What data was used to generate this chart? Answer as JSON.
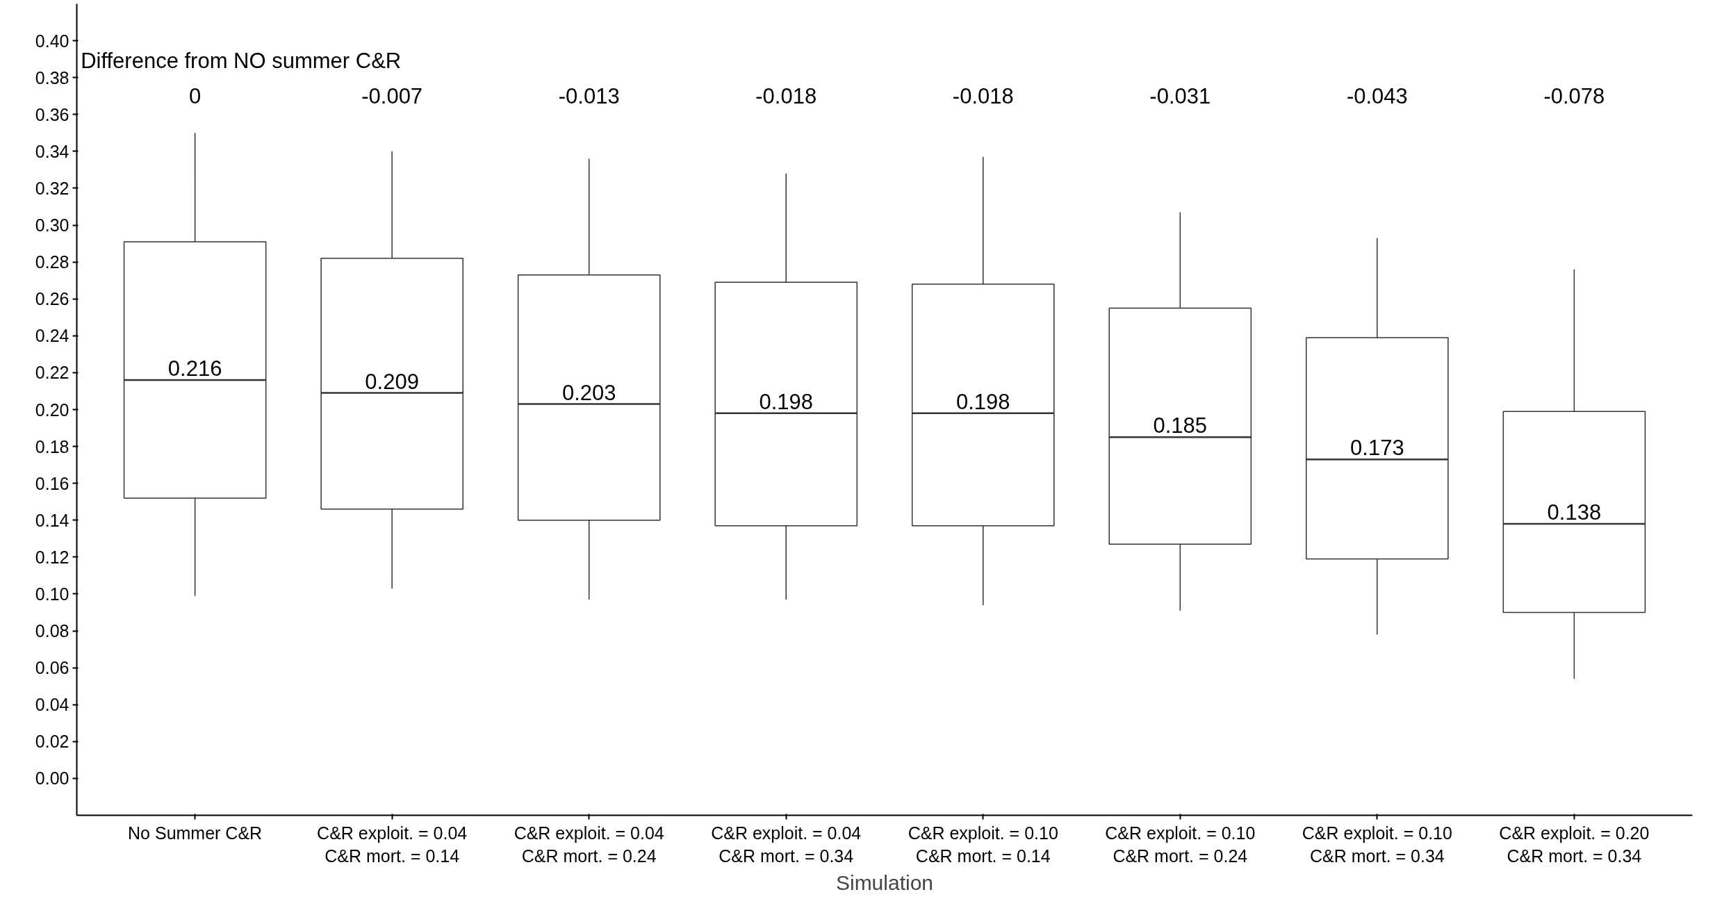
{
  "chart_data": {
    "type": "box",
    "xlabel": "Simulation",
    "categories": [
      "No Summer C&R",
      "C&R exploit. = 0.04\nC&R mort. = 0.14",
      "C&R exploit. = 0.04\nC&R mort. = 0.24",
      "C&R exploit. = 0.04\nC&R mort. = 0.34",
      "C&R exploit. = 0.10\nC&R mort. = 0.14",
      "C&R exploit. = 0.10\nC&R mort. = 0.24",
      "C&R exploit. = 0.10\nC&R mort. = 0.34",
      "C&R exploit. = 0.20\nC&R mort. = 0.34"
    ],
    "boxes": [
      {
        "low": 0.099,
        "q1": 0.152,
        "median": 0.216,
        "q3": 0.291,
        "high": 0.35
      },
      {
        "low": 0.103,
        "q1": 0.146,
        "median": 0.209,
        "q3": 0.282,
        "high": 0.34
      },
      {
        "low": 0.097,
        "q1": 0.14,
        "median": 0.203,
        "q3": 0.273,
        "high": 0.336
      },
      {
        "low": 0.097,
        "q1": 0.137,
        "median": 0.198,
        "q3": 0.269,
        "high": 0.328
      },
      {
        "low": 0.094,
        "q1": 0.137,
        "median": 0.198,
        "q3": 0.268,
        "high": 0.337
      },
      {
        "low": 0.091,
        "q1": 0.127,
        "median": 0.185,
        "q3": 0.255,
        "high": 0.307
      },
      {
        "low": 0.078,
        "q1": 0.119,
        "median": 0.173,
        "q3": 0.239,
        "high": 0.293
      },
      {
        "low": 0.054,
        "q1": 0.09,
        "median": 0.138,
        "q3": 0.199,
        "high": 0.276
      }
    ],
    "color": "#333333",
    "value_labels": [
      "0.216",
      "0.209",
      "0.203",
      "0.198",
      "0.198",
      "0.185",
      "0.173",
      "0.138"
    ],
    "ylim": [
      -0.02,
      0.42
    ],
    "yticks": [
      {
        "value": 0,
        "label": "0.00"
      },
      {
        "value": 0.02,
        "label": "0.02"
      },
      {
        "value": 0.04,
        "label": "0.04"
      },
      {
        "value": 0.06,
        "label": "0.06"
      },
      {
        "value": 0.08,
        "label": "0.08"
      },
      {
        "value": 0.1,
        "label": "0.10"
      },
      {
        "value": 0.12,
        "label": "0.12"
      },
      {
        "value": 0.14,
        "label": "0.14"
      },
      {
        "value": 0.16,
        "label": "0.16"
      },
      {
        "value": 0.18,
        "label": "0.18"
      },
      {
        "value": 0.2,
        "label": "0.20"
      },
      {
        "value": 0.22,
        "label": "0.22"
      },
      {
        "value": 0.24,
        "label": "0.24"
      },
      {
        "value": 0.26,
        "label": "0.26"
      },
      {
        "value": 0.28,
        "label": "0.28"
      },
      {
        "value": 0.3,
        "label": "0.30"
      },
      {
        "value": 0.32,
        "label": "0.32"
      },
      {
        "value": 0.34,
        "label": "0.34"
      },
      {
        "value": 0.36,
        "label": "0.36"
      },
      {
        "value": 0.38,
        "label": "0.38"
      },
      {
        "value": 0.4,
        "label": "0.40"
      }
    ],
    "grid": false,
    "annotations": [
      "Difference from NO summer C&R",
      "0",
      "-0.007",
      "-0.013",
      "-0.018",
      "-0.018",
      "-0.031",
      "-0.043",
      "-0.078"
    ]
  }
}
